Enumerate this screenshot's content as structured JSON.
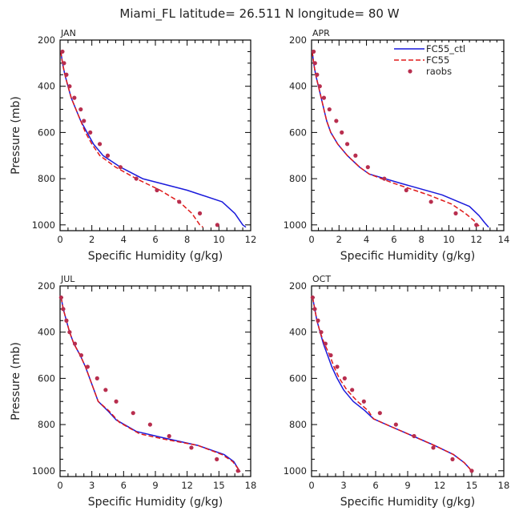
{
  "title": "Miami_FL  latitude= 26.511 N longitude= 80 W",
  "colors": {
    "ctl": "#1a1adb",
    "fc55": "#e01a1a",
    "raobs": "#b82e4e",
    "axis": "#000000"
  },
  "legend": {
    "placement": "top-right of APR panel",
    "entries": [
      "FC55_ctl",
      "FC55",
      "raobs"
    ]
  },
  "chart_data": [
    {
      "type": "line",
      "panel": "JAN",
      "xlabel": "Specific Humidity (g/kg)",
      "ylabel": "Pressure (mb)",
      "xlim": [
        0,
        12
      ],
      "ylim": [
        200,
        1025
      ],
      "xticks": [
        0,
        2,
        4,
        6,
        8,
        10,
        12
      ],
      "yticks": [
        200,
        400,
        600,
        800,
        1000
      ],
      "series": [
        {
          "name": "FC55_ctl",
          "style": "solid",
          "points": [
            [
              0.05,
              250
            ],
            [
              0.15,
              300
            ],
            [
              0.3,
              350
            ],
            [
              0.5,
              400
            ],
            [
              0.7,
              450
            ],
            [
              1.0,
              500
            ],
            [
              1.3,
              550
            ],
            [
              1.7,
              600
            ],
            [
              2.1,
              650
            ],
            [
              2.7,
              700
            ],
            [
              3.8,
              750
            ],
            [
              5.2,
              800
            ],
            [
              8.0,
              850
            ],
            [
              10.2,
              900
            ],
            [
              11.0,
              950
            ],
            [
              11.5,
              1000
            ],
            [
              11.7,
              1010
            ]
          ]
        },
        {
          "name": "FC55",
          "style": "dashed",
          "points": [
            [
              0.05,
              250
            ],
            [
              0.15,
              300
            ],
            [
              0.3,
              350
            ],
            [
              0.5,
              400
            ],
            [
              0.7,
              450
            ],
            [
              1.0,
              500
            ],
            [
              1.3,
              550
            ],
            [
              1.6,
              600
            ],
            [
              2.0,
              650
            ],
            [
              2.5,
              700
            ],
            [
              3.5,
              750
            ],
            [
              4.8,
              800
            ],
            [
              6.3,
              850
            ],
            [
              7.5,
              900
            ],
            [
              8.3,
              950
            ],
            [
              8.8,
              1000
            ],
            [
              9.0,
              1010
            ]
          ]
        },
        {
          "name": "raobs",
          "style": "markers",
          "points": [
            [
              0.15,
              250
            ],
            [
              0.25,
              300
            ],
            [
              0.4,
              350
            ],
            [
              0.6,
              400
            ],
            [
              0.9,
              450
            ],
            [
              1.3,
              500
            ],
            [
              1.5,
              550
            ],
            [
              1.9,
              600
            ],
            [
              2.5,
              650
            ],
            [
              3.0,
              700
            ],
            [
              3.8,
              750
            ],
            [
              4.8,
              800
            ],
            [
              6.1,
              850
            ],
            [
              7.5,
              900
            ],
            [
              8.8,
              950
            ],
            [
              9.9,
              1000
            ]
          ]
        }
      ]
    },
    {
      "type": "line",
      "panel": "APR",
      "xlabel": "Specific Humidity (g/kg)",
      "ylabel": "",
      "xlim": [
        0,
        14
      ],
      "ylim": [
        200,
        1025
      ],
      "xticks": [
        0,
        2,
        4,
        6,
        8,
        10,
        12,
        14
      ],
      "yticks": [
        200,
        400,
        600,
        800,
        1000
      ],
      "series": [
        {
          "name": "FC55_ctl",
          "style": "solid",
          "points": [
            [
              0.05,
              250
            ],
            [
              0.15,
              300
            ],
            [
              0.3,
              350
            ],
            [
              0.5,
              400
            ],
            [
              0.7,
              450
            ],
            [
              0.9,
              500
            ],
            [
              1.1,
              550
            ],
            [
              1.4,
              600
            ],
            [
              1.9,
              650
            ],
            [
              2.6,
              700
            ],
            [
              3.5,
              750
            ],
            [
              4.2,
              780
            ],
            [
              6.5,
              820
            ],
            [
              9.5,
              870
            ],
            [
              11.5,
              920
            ],
            [
              12.2,
              960
            ],
            [
              12.6,
              990
            ],
            [
              12.9,
              1010
            ]
          ]
        },
        {
          "name": "FC55",
          "style": "dashed",
          "points": [
            [
              0.05,
              250
            ],
            [
              0.15,
              300
            ],
            [
              0.3,
              350
            ],
            [
              0.5,
              400
            ],
            [
              0.7,
              450
            ],
            [
              0.9,
              500
            ],
            [
              1.1,
              550
            ],
            [
              1.4,
              600
            ],
            [
              1.9,
              650
            ],
            [
              2.6,
              700
            ],
            [
              3.5,
              750
            ],
            [
              4.2,
              780
            ],
            [
              6.0,
              820
            ],
            [
              8.5,
              870
            ],
            [
              10.2,
              910
            ],
            [
              11.2,
              950
            ],
            [
              11.8,
              980
            ],
            [
              12.2,
              1005
            ]
          ]
        },
        {
          "name": "raobs",
          "style": "markers",
          "points": [
            [
              0.15,
              250
            ],
            [
              0.25,
              300
            ],
            [
              0.4,
              350
            ],
            [
              0.6,
              400
            ],
            [
              0.9,
              450
            ],
            [
              1.3,
              500
            ],
            [
              1.8,
              550
            ],
            [
              2.2,
              600
            ],
            [
              2.6,
              650
            ],
            [
              3.2,
              700
            ],
            [
              4.1,
              750
            ],
            [
              5.3,
              800
            ],
            [
              6.9,
              850
            ],
            [
              8.7,
              900
            ],
            [
              10.5,
              950
            ],
            [
              12.0,
              1000
            ]
          ]
        }
      ]
    },
    {
      "type": "line",
      "panel": "JUL",
      "xlabel": "Specific Humidity (g/kg)",
      "ylabel": "Pressure (mb)",
      "xlim": [
        0,
        18
      ],
      "ylim": [
        200,
        1025
      ],
      "xticks": [
        0,
        3,
        6,
        9,
        12,
        15,
        18
      ],
      "yticks": [
        200,
        400,
        600,
        800,
        1000
      ],
      "series": [
        {
          "name": "FC55_ctl",
          "style": "solid",
          "points": [
            [
              0.1,
              250
            ],
            [
              0.3,
              300
            ],
            [
              0.6,
              350
            ],
            [
              0.9,
              400
            ],
            [
              1.3,
              450
            ],
            [
              1.9,
              500
            ],
            [
              2.4,
              550
            ],
            [
              2.8,
              600
            ],
            [
              3.2,
              650
            ],
            [
              3.6,
              700
            ],
            [
              4.5,
              740
            ],
            [
              5.3,
              780
            ],
            [
              7.2,
              830
            ],
            [
              10.0,
              860
            ],
            [
              13.0,
              890
            ],
            [
              15.5,
              930
            ],
            [
              16.4,
              960
            ],
            [
              16.8,
              990
            ],
            [
              17.0,
              1005
            ]
          ]
        },
        {
          "name": "FC55",
          "style": "dashed",
          "points": [
            [
              0.1,
              250
            ],
            [
              0.3,
              300
            ],
            [
              0.6,
              350
            ],
            [
              0.9,
              400
            ],
            [
              1.3,
              450
            ],
            [
              1.9,
              500
            ],
            [
              2.4,
              550
            ],
            [
              2.8,
              600
            ],
            [
              3.2,
              650
            ],
            [
              3.6,
              700
            ],
            [
              4.6,
              740
            ],
            [
              5.6,
              790
            ],
            [
              7.5,
              840
            ],
            [
              10.0,
              865
            ],
            [
              13.0,
              890
            ],
            [
              15.3,
              930
            ],
            [
              16.3,
              960
            ],
            [
              16.8,
              990
            ],
            [
              17.0,
              1005
            ]
          ]
        },
        {
          "name": "raobs",
          "style": "markers",
          "points": [
            [
              0.1,
              250
            ],
            [
              0.3,
              300
            ],
            [
              0.6,
              350
            ],
            [
              0.9,
              400
            ],
            [
              1.4,
              450
            ],
            [
              2.0,
              500
            ],
            [
              2.6,
              550
            ],
            [
              3.5,
              600
            ],
            [
              4.3,
              650
            ],
            [
              5.3,
              700
            ],
            [
              6.9,
              750
            ],
            [
              8.5,
              800
            ],
            [
              10.3,
              850
            ],
            [
              12.4,
              900
            ],
            [
              14.8,
              950
            ],
            [
              16.8,
              1000
            ]
          ]
        }
      ]
    },
    {
      "type": "line",
      "panel": "OCT",
      "xlabel": "Specific Humidity (g/kg)",
      "ylabel": "",
      "xlim": [
        0,
        18
      ],
      "ylim": [
        200,
        1025
      ],
      "xticks": [
        0,
        3,
        6,
        9,
        12,
        15,
        18
      ],
      "yticks": [
        200,
        400,
        600,
        800,
        1000
      ],
      "series": [
        {
          "name": "FC55_ctl",
          "style": "solid",
          "points": [
            [
              0.1,
              250
            ],
            [
              0.3,
              300
            ],
            [
              0.5,
              350
            ],
            [
              0.8,
              400
            ],
            [
              1.1,
              450
            ],
            [
              1.5,
              500
            ],
            [
              1.9,
              550
            ],
            [
              2.4,
              600
            ],
            [
              3.0,
              650
            ],
            [
              3.9,
              700
            ],
            [
              5.0,
              740
            ],
            [
              5.8,
              775
            ],
            [
              7.5,
              810
            ],
            [
              9.5,
              850
            ],
            [
              11.5,
              890
            ],
            [
              13.3,
              930
            ],
            [
              14.3,
              965
            ],
            [
              14.8,
              990
            ],
            [
              15.0,
              1005
            ]
          ]
        },
        {
          "name": "FC55",
          "style": "dashed",
          "points": [
            [
              0.1,
              250
            ],
            [
              0.3,
              300
            ],
            [
              0.5,
              350
            ],
            [
              0.8,
              400
            ],
            [
              1.2,
              450
            ],
            [
              1.7,
              500
            ],
            [
              2.1,
              550
            ],
            [
              2.6,
              600
            ],
            [
              3.3,
              650
            ],
            [
              4.3,
              700
            ],
            [
              5.3,
              740
            ],
            [
              5.8,
              775
            ],
            [
              7.5,
              810
            ],
            [
              9.5,
              850
            ],
            [
              11.5,
              890
            ],
            [
              13.3,
              930
            ],
            [
              14.3,
              965
            ],
            [
              14.8,
              990
            ],
            [
              15.0,
              1005
            ]
          ]
        },
        {
          "name": "raobs",
          "style": "markers",
          "points": [
            [
              0.1,
              250
            ],
            [
              0.3,
              300
            ],
            [
              0.6,
              350
            ],
            [
              0.9,
              400
            ],
            [
              1.3,
              450
            ],
            [
              1.8,
              500
            ],
            [
              2.4,
              550
            ],
            [
              3.1,
              600
            ],
            [
              3.8,
              650
            ],
            [
              4.9,
              700
            ],
            [
              6.4,
              750
            ],
            [
              7.9,
              800
            ],
            [
              9.6,
              850
            ],
            [
              11.4,
              900
            ],
            [
              13.2,
              950
            ],
            [
              15.0,
              1000
            ]
          ]
        }
      ]
    }
  ]
}
